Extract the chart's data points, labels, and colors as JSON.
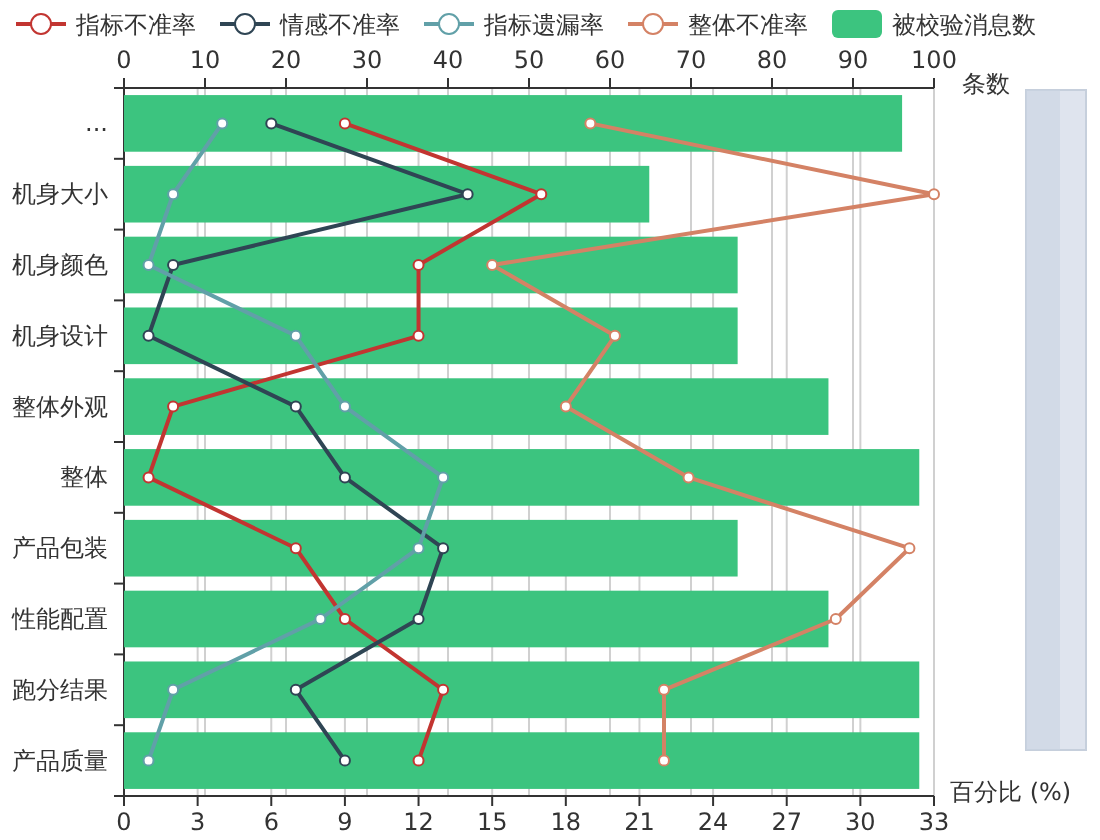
{
  "chart_data": {
    "type": "bar",
    "orientation": "horizontal",
    "categories": [
      "...",
      "机身大小",
      "机身颜色",
      "机身设计",
      "整体外观",
      "整体",
      "产品包装",
      "性能配置",
      "跑分结果",
      "产品质量"
    ],
    "series": [
      {
        "name": "指标不准率",
        "type": "line",
        "color": "#c23531",
        "values": [
          9,
          17,
          12,
          12,
          2,
          1,
          7,
          9,
          13,
          12
        ]
      },
      {
        "name": "情感不准率",
        "type": "line",
        "color": "#2f4554",
        "values": [
          6,
          14,
          2,
          1,
          7,
          9,
          13,
          12,
          7,
          9
        ]
      },
      {
        "name": "指标遗漏率",
        "type": "line",
        "color": "#61a0a8",
        "values": [
          4,
          2,
          1,
          7,
          9,
          13,
          12,
          8,
          2,
          1
        ]
      },
      {
        "name": "整体不准率",
        "type": "line",
        "color": "#d48265",
        "values": [
          19,
          33,
          15,
          20,
          18,
          23,
          32,
          29,
          22,
          22
        ]
      },
      {
        "name": "被校验消息数",
        "color": "#3cc47f",
        "values": [
          31.7,
          21.4,
          25,
          25,
          28.7,
          32.4,
          25,
          28.7,
          32.4,
          32.4
        ]
      }
    ],
    "xlim": [
      0,
      33
    ],
    "xticks": [
      0,
      3,
      6,
      9,
      12,
      15,
      18,
      21,
      24,
      27,
      30,
      33
    ],
    "xlabel": "百分比 (%)",
    "x2lim": [
      0,
      100
    ],
    "x2ticks": [
      0,
      10,
      20,
      30,
      40,
      50,
      60,
      70,
      80,
      90,
      100
    ],
    "x2label": "条数",
    "grid": "x",
    "legend": "top",
    "marker": "circle"
  }
}
